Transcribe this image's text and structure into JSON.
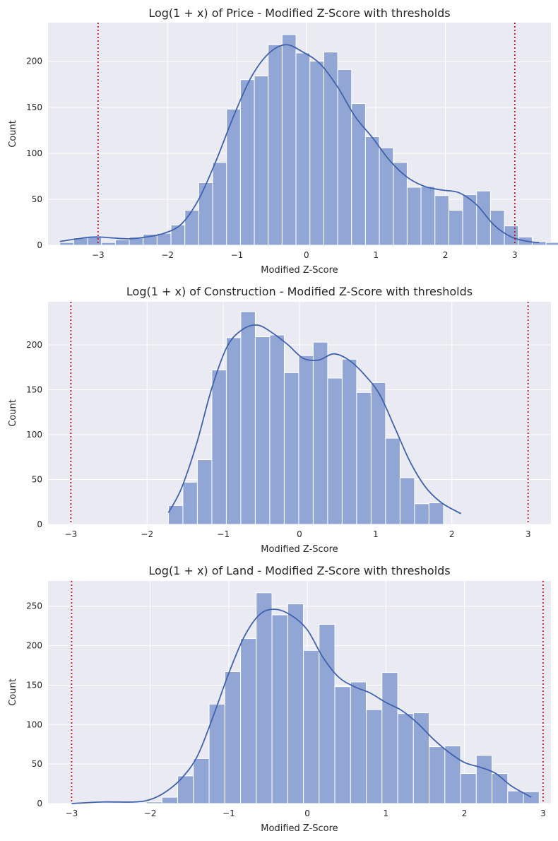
{
  "colors": {
    "bar_fill": "#91A6D4",
    "kde_line": "#4062AE",
    "threshold": "#C0101E",
    "plot_bg": "#EAEAF2"
  },
  "chart_data": [
    {
      "type": "histogram",
      "title": "Log(1 + x) of Price - Modified Z-Score with thresholds",
      "xlabel": "Modified Z-Score",
      "ylabel": "Count",
      "xlim": [
        -3.72,
        3.52
      ],
      "ylim": [
        0,
        242
      ],
      "xticks": [
        -3,
        -2,
        -1,
        0,
        1,
        2,
        3
      ],
      "xtick_labels": [
        "−3",
        "−2",
        "−1",
        "0",
        "1",
        "2",
        "3"
      ],
      "yticks": [
        0,
        50,
        100,
        150,
        200
      ],
      "thresholds": [
        -3,
        3
      ],
      "grid": true,
      "bin_start": -3.55,
      "bin_width": 0.2,
      "values": [
        3,
        8,
        10,
        3,
        6,
        9,
        12,
        13,
        22,
        38,
        68,
        90,
        148,
        180,
        184,
        218,
        229,
        209,
        200,
        210,
        191,
        154,
        118,
        106,
        90,
        63,
        64,
        54,
        38,
        55,
        59,
        38,
        21,
        9,
        4,
        3
      ],
      "kde": {
        "x": [
          -3.55,
          -3.3,
          -3.05,
          -2.8,
          -2.55,
          -2.3,
          -2.05,
          -1.8,
          -1.55,
          -1.3,
          -1.05,
          -0.8,
          -0.55,
          -0.3,
          -0.05,
          0.2,
          0.45,
          0.7,
          0.95,
          1.2,
          1.45,
          1.7,
          1.95,
          2.2,
          2.45,
          2.7,
          2.95,
          3.2,
          3.35
        ],
        "y": [
          4,
          7,
          9,
          8,
          7,
          9,
          13,
          23,
          50,
          92,
          140,
          182,
          208,
          218,
          210,
          197,
          172,
          140,
          117,
          92,
          74,
          64,
          60,
          57,
          44,
          22,
          9,
          4,
          3
        ]
      }
    },
    {
      "type": "histogram",
      "title": "Log(1 + x) of Construction - Modified Z-Score with thresholds",
      "xlabel": "Modified Z-Score",
      "ylabel": "Count",
      "xlim": [
        -3.3,
        3.3
      ],
      "ylim": [
        0,
        248
      ],
      "xticks": [
        -3,
        -2,
        -1,
        0,
        1,
        2,
        3
      ],
      "xtick_labels": [
        "−3",
        "−2",
        "−1",
        "0",
        "1",
        "2",
        "3"
      ],
      "yticks": [
        0,
        50,
        100,
        150,
        200
      ],
      "thresholds": [
        -3,
        3
      ],
      "grid": true,
      "bin_start": -1.72,
      "bin_width": 0.19,
      "values": [
        21,
        47,
        72,
        172,
        208,
        237,
        209,
        211,
        169,
        188,
        203,
        163,
        184,
        147,
        158,
        96,
        52,
        23,
        24
      ],
      "kde": {
        "x": [
          -1.72,
          -1.55,
          -1.35,
          -1.15,
          -0.95,
          -0.75,
          -0.55,
          -0.35,
          -0.15,
          0.05,
          0.25,
          0.45,
          0.65,
          0.85,
          1.05,
          1.25,
          1.45,
          1.65,
          1.85,
          2.05,
          2.12
        ],
        "y": [
          13,
          40,
          90,
          152,
          198,
          217,
          222,
          213,
          200,
          185,
          183,
          190,
          183,
          167,
          145,
          108,
          70,
          42,
          25,
          15,
          12
        ]
      }
    },
    {
      "type": "histogram",
      "title": "Log(1 + x) of Land - Modified Z-Score with thresholds",
      "xlabel": "Modified Z-Score",
      "ylabel": "Count",
      "xlim": [
        -3.3,
        3.1
      ],
      "ylim": [
        0,
        282
      ],
      "xticks": [
        -3,
        -2,
        -1,
        0,
        1,
        2,
        3
      ],
      "xtick_labels": [
        "−3",
        "−2",
        "−1",
        "0",
        "1",
        "2",
        "3"
      ],
      "yticks": [
        0,
        50,
        100,
        150,
        200,
        250
      ],
      "thresholds": [
        -3,
        3
      ],
      "grid": true,
      "bin_start": -2.05,
      "bin_width": 0.2,
      "values": [
        2,
        8,
        35,
        57,
        126,
        167,
        209,
        267,
        239,
        253,
        194,
        227,
        148,
        154,
        119,
        166,
        114,
        115,
        72,
        73,
        38,
        61,
        38,
        16,
        15
      ],
      "kde": {
        "x": [
          -3.0,
          -2.6,
          -2.2,
          -2.0,
          -1.8,
          -1.6,
          -1.4,
          -1.2,
          -1.0,
          -0.8,
          -0.6,
          -0.4,
          -0.2,
          0.0,
          0.2,
          0.4,
          0.6,
          0.8,
          1.0,
          1.2,
          1.4,
          1.6,
          1.8,
          2.0,
          2.2,
          2.4,
          2.6,
          2.85
        ],
        "y": [
          0,
          2,
          2,
          5,
          15,
          32,
          60,
          110,
          165,
          212,
          240,
          246,
          238,
          220,
          185,
          160,
          148,
          140,
          128,
          118,
          102,
          82,
          65,
          52,
          46,
          38,
          22,
          8
        ]
      }
    }
  ]
}
